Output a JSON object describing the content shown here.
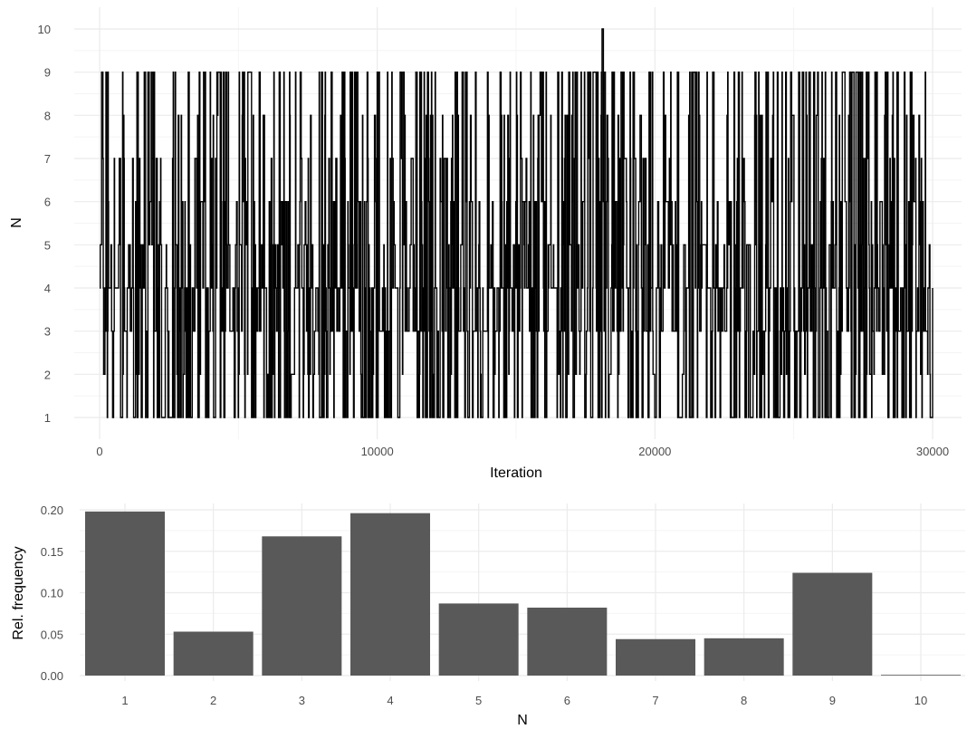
{
  "chart_data": [
    {
      "type": "line",
      "title": "",
      "xlabel": "Iteration",
      "ylabel": "N",
      "xlim": [
        0,
        30000
      ],
      "ylim": [
        1,
        10
      ],
      "x_ticks": [
        0,
        10000,
        20000,
        30000
      ],
      "y_ticks": [
        1,
        2,
        3,
        4,
        5,
        6,
        7,
        8,
        9,
        10
      ],
      "grid": true,
      "n_iterations": 30000,
      "value_range": [
        1,
        10
      ],
      "peak": {
        "x": 18100,
        "y": 10
      },
      "series": [
        {
          "x": [
            0,
            600,
            1200,
            1800,
            2400,
            3000,
            3600,
            4200,
            4800,
            5400,
            6000,
            6600,
            7200,
            7800,
            8400,
            9000,
            9600,
            10200,
            10800,
            11400,
            12000,
            12600,
            13200,
            13800,
            14400,
            15000,
            15600,
            16200,
            16800,
            17400,
            18000,
            18600,
            19200,
            19800,
            20400,
            21000,
            21600,
            22200,
            22800,
            23400,
            24000,
            24600,
            25200,
            25800,
            26400,
            27000,
            27600,
            28200,
            28800,
            29400,
            30000
          ],
          "y": [
            4,
            5,
            3,
            6,
            1,
            4,
            9,
            2,
            5,
            3,
            7,
            1,
            4,
            6,
            2,
            9,
            3,
            5,
            1,
            4,
            8,
            2,
            6,
            3,
            5,
            9,
            4,
            1,
            7,
            3,
            5,
            4,
            2,
            6,
            9,
            3,
            1,
            5,
            4,
            7,
            2,
            9,
            3,
            6,
            1,
            4,
            5,
            2,
            8,
            3,
            4
          ]
        }
      ]
    },
    {
      "type": "bar",
      "title": "",
      "xlabel": "N",
      "ylabel": "Rel. frequency",
      "categories": [
        "1",
        "2",
        "3",
        "4",
        "5",
        "6",
        "7",
        "8",
        "9",
        "10"
      ],
      "values": [
        0.198,
        0.053,
        0.168,
        0.196,
        0.087,
        0.082,
        0.044,
        0.045,
        0.124,
        0.0005
      ],
      "ylim": [
        0,
        0.2
      ],
      "y_ticks": [
        "0.00",
        "0.05",
        "0.10",
        "0.15",
        "0.20"
      ],
      "grid": true,
      "bar_color": "#595959"
    }
  ],
  "colors": {
    "grid_major": "#ebebeb",
    "grid_minor": "#f4f4f4",
    "line": "#000000",
    "bar": "#595959",
    "tick_text": "#4d4d4d"
  }
}
